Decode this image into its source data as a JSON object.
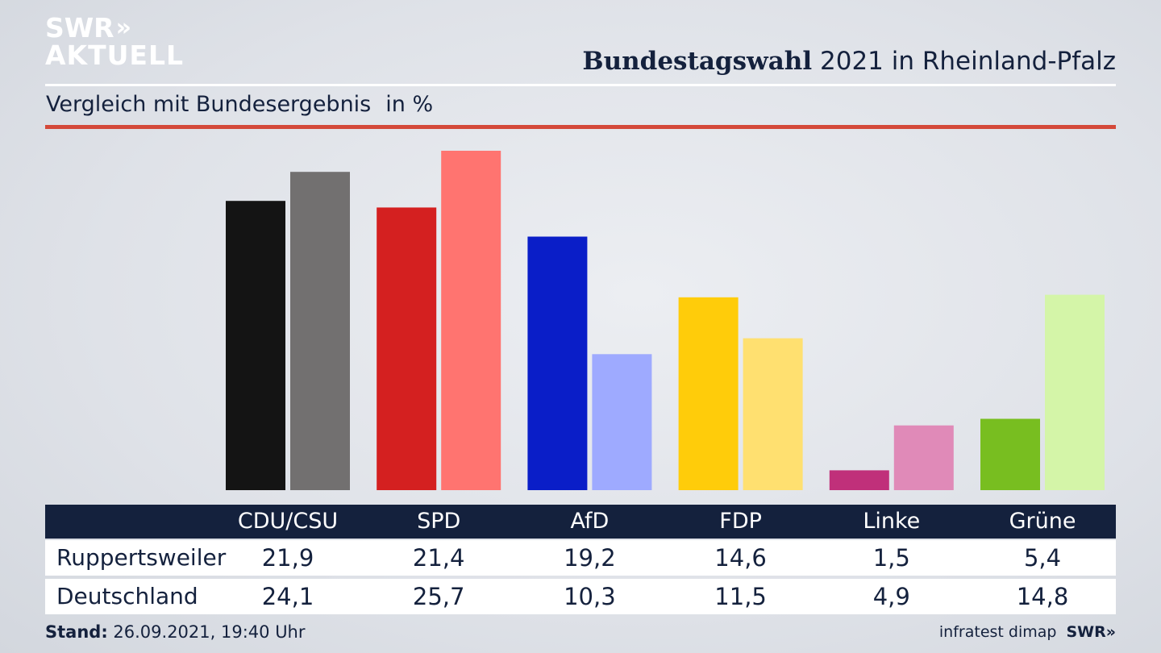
{
  "brand": {
    "logo_line1": "SWR",
    "logo_chevrons": "»",
    "logo_line2": "AKTUELL",
    "footer_logo": "SWR»"
  },
  "header": {
    "title_bold": "Bundestagswahl",
    "title_rest": "2021 in Rheinland-Pfalz",
    "subtitle": "Vergleich mit Bundesergebnis",
    "unit": "in %"
  },
  "table": {
    "row_labels": [
      "Ruppertsweiler",
      "Deutschland"
    ]
  },
  "footer": {
    "stand_label": "Stand:",
    "stand_value": "26.09.2021, 19:40 Uhr",
    "source": "infratest dimap"
  },
  "chart_data": {
    "type": "bar",
    "categories": [
      "CDU/CSU",
      "SPD",
      "AfD",
      "FDP",
      "Linke",
      "Grüne"
    ],
    "series": [
      {
        "name": "Ruppertsweiler",
        "values": [
          21.9,
          21.4,
          19.2,
          14.6,
          1.5,
          5.4
        ],
        "values_text": [
          "21,9",
          "21,4",
          "19,2",
          "14,6",
          "1,5",
          "5,4"
        ]
      },
      {
        "name": "Deutschland",
        "values": [
          24.1,
          25.7,
          10.3,
          11.5,
          4.9,
          14.8
        ],
        "values_text": [
          "24,1",
          "25,7",
          "10,3",
          "11,5",
          "4,9",
          "14,8"
        ]
      }
    ],
    "colors_primary": [
      "#141414",
      "#d42020",
      "#0a1ec8",
      "#ffcc0a",
      "#c0307a",
      "#78be20"
    ],
    "colors_secondary": [
      "#727070",
      "#ff7470",
      "#9eaaff",
      "#ffe070",
      "#e08ab8",
      "#d4f5a8"
    ],
    "ylim": [
      0,
      25.7
    ],
    "grid": false,
    "legend": "table-below"
  }
}
